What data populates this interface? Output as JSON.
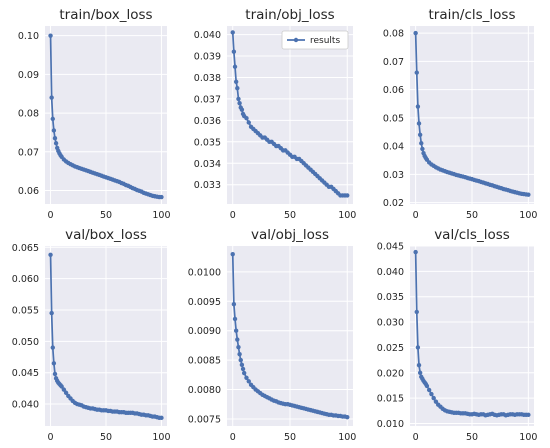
{
  "legend": {
    "label": "results",
    "position": "top-right",
    "panel": 1
  },
  "series_color": "#4c72b0",
  "chart_data": [
    {
      "type": "line",
      "title": "train/box_loss",
      "x": [
        0,
        1,
        2,
        3,
        4,
        5,
        6,
        7,
        8,
        9,
        10,
        12,
        14,
        16,
        18,
        20,
        22,
        24,
        26,
        28,
        30,
        32,
        34,
        36,
        38,
        40,
        42,
        44,
        46,
        48,
        50,
        52,
        54,
        56,
        58,
        60,
        62,
        64,
        66,
        68,
        70,
        72,
        74,
        76,
        78,
        80,
        82,
        84,
        86,
        88,
        90,
        92,
        94,
        96,
        98,
        100
      ],
      "y": [
        0.1,
        0.084,
        0.0785,
        0.0755,
        0.0735,
        0.0722,
        0.071,
        0.0702,
        0.0696,
        0.0691,
        0.0687,
        0.068,
        0.0675,
        0.0671,
        0.0668,
        0.0665,
        0.0662,
        0.066,
        0.0658,
        0.0656,
        0.0654,
        0.0652,
        0.065,
        0.0648,
        0.0646,
        0.0644,
        0.0642,
        0.064,
        0.0638,
        0.0636,
        0.0634,
        0.0632,
        0.063,
        0.0628,
        0.0626,
        0.0624,
        0.0622,
        0.0619,
        0.0617,
        0.0614,
        0.0612,
        0.0609,
        0.0606,
        0.0604,
        0.0601,
        0.0599,
        0.0597,
        0.0594,
        0.0592,
        0.059,
        0.0588,
        0.0586,
        0.0585,
        0.0584,
        0.0583,
        0.0583
      ],
      "xticks": [
        0,
        50,
        100
      ],
      "yticks": [
        0.06,
        0.07,
        0.08,
        0.09,
        0.1
      ],
      "ytick_labels": [
        "0.06",
        "0.07",
        "0.08",
        "0.09",
        "0.10"
      ],
      "xlim": [
        -5,
        105
      ],
      "ylim": [
        0.0565,
        0.1025
      ]
    },
    {
      "type": "line",
      "title": "train/obj_loss",
      "x": [
        0,
        1,
        2,
        3,
        4,
        5,
        6,
        7,
        8,
        9,
        10,
        12,
        14,
        16,
        18,
        20,
        22,
        24,
        26,
        28,
        30,
        32,
        34,
        36,
        38,
        40,
        42,
        44,
        46,
        48,
        50,
        52,
        54,
        56,
        58,
        60,
        62,
        64,
        66,
        68,
        70,
        72,
        74,
        76,
        78,
        80,
        82,
        84,
        86,
        88,
        90,
        92,
        94,
        96,
        98,
        100
      ],
      "y": [
        0.0401,
        0.0392,
        0.0385,
        0.0378,
        0.0375,
        0.037,
        0.0368,
        0.0366,
        0.0365,
        0.0363,
        0.0362,
        0.0361,
        0.0359,
        0.0357,
        0.0356,
        0.0355,
        0.0354,
        0.0353,
        0.0352,
        0.0352,
        0.0351,
        0.035,
        0.035,
        0.0349,
        0.0348,
        0.0348,
        0.0347,
        0.0346,
        0.0346,
        0.0345,
        0.0344,
        0.0343,
        0.0343,
        0.0342,
        0.0342,
        0.0341,
        0.034,
        0.0339,
        0.0338,
        0.0337,
        0.0336,
        0.0335,
        0.0334,
        0.0333,
        0.0332,
        0.0331,
        0.033,
        0.0329,
        0.0329,
        0.0328,
        0.0327,
        0.0326,
        0.0325,
        0.0325,
        0.0325,
        0.0325
      ],
      "xticks": [
        0,
        50,
        100
      ],
      "yticks": [
        0.033,
        0.034,
        0.035,
        0.036,
        0.037,
        0.038,
        0.039,
        0.04
      ],
      "ytick_labels": [
        "0.033",
        "0.034",
        "0.035",
        "0.036",
        "0.037",
        "0.038",
        "0.039",
        "0.040"
      ],
      "xlim": [
        -5,
        105
      ],
      "ylim": [
        0.0321,
        0.0404
      ]
    },
    {
      "type": "line",
      "title": "train/cls_loss",
      "x": [
        0,
        1,
        2,
        3,
        4,
        5,
        6,
        7,
        8,
        9,
        10,
        12,
        14,
        16,
        18,
        20,
        22,
        24,
        26,
        28,
        30,
        32,
        34,
        36,
        38,
        40,
        42,
        44,
        46,
        48,
        50,
        52,
        54,
        56,
        58,
        60,
        62,
        64,
        66,
        68,
        70,
        72,
        74,
        76,
        78,
        80,
        82,
        84,
        86,
        88,
        90,
        92,
        94,
        96,
        98,
        100
      ],
      "y": [
        0.08,
        0.066,
        0.054,
        0.048,
        0.044,
        0.041,
        0.039,
        0.0375,
        0.0365,
        0.0358,
        0.0352,
        0.0342,
        0.0335,
        0.033,
        0.0325,
        0.0321,
        0.0317,
        0.0314,
        0.0311,
        0.0308,
        0.0306,
        0.0303,
        0.0301,
        0.0298,
        0.0296,
        0.0294,
        0.0292,
        0.029,
        0.0287,
        0.0285,
        0.0283,
        0.028,
        0.0278,
        0.0276,
        0.0273,
        0.0271,
        0.0268,
        0.0266,
        0.0263,
        0.0261,
        0.0258,
        0.0256,
        0.0253,
        0.0251,
        0.0248,
        0.0246,
        0.0244,
        0.0241,
        0.0239,
        0.0237,
        0.0235,
        0.0233,
        0.0231,
        0.023,
        0.0229,
        0.0228
      ],
      "xticks": [
        0,
        50,
        100
      ],
      "yticks": [
        0.02,
        0.03,
        0.04,
        0.05,
        0.06,
        0.07,
        0.08
      ],
      "ytick_labels": [
        "0.02",
        "0.03",
        "0.04",
        "0.05",
        "0.06",
        "0.07",
        "0.08"
      ],
      "xlim": [
        -5,
        105
      ],
      "ylim": [
        0.0195,
        0.0825
      ]
    },
    {
      "type": "line",
      "title": "val/box_loss",
      "x": [
        0,
        1,
        2,
        3,
        4,
        5,
        6,
        7,
        8,
        9,
        10,
        12,
        14,
        16,
        18,
        20,
        22,
        24,
        26,
        28,
        30,
        32,
        34,
        36,
        38,
        40,
        42,
        44,
        46,
        48,
        50,
        52,
        54,
        56,
        58,
        60,
        62,
        64,
        66,
        68,
        70,
        72,
        74,
        76,
        78,
        80,
        82,
        84,
        86,
        88,
        90,
        92,
        94,
        96,
        98,
        100
      ],
      "y": [
        0.0638,
        0.0545,
        0.049,
        0.0465,
        0.0448,
        0.0441,
        0.0437,
        0.0434,
        0.0432,
        0.043,
        0.0428,
        0.0423,
        0.0418,
        0.0413,
        0.0409,
        0.0405,
        0.0402,
        0.04,
        0.0399,
        0.0398,
        0.0396,
        0.0395,
        0.0394,
        0.0393,
        0.0393,
        0.0392,
        0.0391,
        0.0391,
        0.039,
        0.039,
        0.039,
        0.0389,
        0.0389,
        0.0388,
        0.0388,
        0.0388,
        0.0387,
        0.0387,
        0.0387,
        0.0386,
        0.0386,
        0.0386,
        0.0386,
        0.0385,
        0.0385,
        0.0384,
        0.0383,
        0.0383,
        0.0382,
        0.0382,
        0.0381,
        0.038,
        0.038,
        0.0379,
        0.0378,
        0.0378
      ],
      "xticks": [
        0,
        50,
        100
      ],
      "yticks": [
        0.04,
        0.045,
        0.05,
        0.055,
        0.06,
        0.065
      ],
      "ytick_labels": [
        "0.040",
        "0.045",
        "0.050",
        "0.055",
        "0.060",
        "0.065"
      ],
      "xlim": [
        -5,
        105
      ],
      "ylim": [
        0.0365,
        0.0652
      ]
    },
    {
      "type": "line",
      "title": "val/obj_loss",
      "x": [
        0,
        1,
        2,
        3,
        4,
        5,
        6,
        7,
        8,
        9,
        10,
        12,
        14,
        16,
        18,
        20,
        22,
        24,
        26,
        28,
        30,
        32,
        34,
        36,
        38,
        40,
        42,
        44,
        46,
        48,
        50,
        52,
        54,
        56,
        58,
        60,
        62,
        64,
        66,
        68,
        70,
        72,
        74,
        76,
        78,
        80,
        82,
        84,
        86,
        88,
        90,
        92,
        94,
        96,
        98,
        100
      ],
      "y": [
        0.0103,
        0.00945,
        0.0092,
        0.009,
        0.00885,
        0.00872,
        0.0086,
        0.0085,
        0.00842,
        0.00835,
        0.00828,
        0.0082,
        0.00814,
        0.00808,
        0.00804,
        0.008,
        0.00797,
        0.00794,
        0.00791,
        0.00789,
        0.00787,
        0.00785,
        0.00783,
        0.00781,
        0.0078,
        0.00778,
        0.00777,
        0.00776,
        0.00775,
        0.00775,
        0.00774,
        0.00773,
        0.00772,
        0.00771,
        0.0077,
        0.00769,
        0.00768,
        0.00767,
        0.00766,
        0.00765,
        0.00764,
        0.00763,
        0.00762,
        0.00761,
        0.0076,
        0.00759,
        0.00758,
        0.00757,
        0.00757,
        0.00756,
        0.00756,
        0.00755,
        0.00755,
        0.00754,
        0.00754,
        0.00753
      ],
      "xticks": [
        0,
        50,
        100
      ],
      "yticks": [
        0.0075,
        0.008,
        0.0085,
        0.009,
        0.0095,
        0.01
      ],
      "ytick_labels": [
        "0.0075",
        "0.0080",
        "0.0085",
        "0.0090",
        "0.0095",
        "0.0100"
      ],
      "xlim": [
        -5,
        105
      ],
      "ylim": [
        0.00738,
        0.01044
      ]
    },
    {
      "type": "line",
      "title": "val/cls_loss",
      "x": [
        0,
        1,
        2,
        3,
        4,
        5,
        6,
        7,
        8,
        9,
        10,
        12,
        14,
        16,
        18,
        20,
        22,
        24,
        26,
        28,
        30,
        32,
        34,
        36,
        38,
        40,
        42,
        44,
        46,
        48,
        50,
        52,
        54,
        56,
        58,
        60,
        62,
        64,
        66,
        68,
        70,
        72,
        74,
        76,
        78,
        80,
        82,
        84,
        86,
        88,
        90,
        92,
        94,
        96,
        98,
        100
      ],
      "y": [
        0.0438,
        0.032,
        0.025,
        0.0215,
        0.02,
        0.0192,
        0.0188,
        0.0184,
        0.0181,
        0.0178,
        0.0174,
        0.0166,
        0.0158,
        0.015,
        0.0143,
        0.0137,
        0.0133,
        0.0129,
        0.0126,
        0.0124,
        0.0123,
        0.0122,
        0.0121,
        0.0121,
        0.0121,
        0.012,
        0.012,
        0.012,
        0.0119,
        0.0118,
        0.0118,
        0.0119,
        0.0118,
        0.0117,
        0.0118,
        0.0118,
        0.0116,
        0.0117,
        0.0118,
        0.0119,
        0.0117,
        0.0116,
        0.0117,
        0.0118,
        0.0118,
        0.0116,
        0.0117,
        0.0118,
        0.0118,
        0.0117,
        0.0118,
        0.0118,
        0.0118,
        0.0117,
        0.0117,
        0.0117
      ],
      "xticks": [
        0,
        50,
        100
      ],
      "yticks": [
        0.01,
        0.015,
        0.02,
        0.025,
        0.03,
        0.035,
        0.04,
        0.045
      ],
      "ytick_labels": [
        "0.010",
        "0.015",
        "0.020",
        "0.025",
        "0.030",
        "0.035",
        "0.040",
        "0.045"
      ],
      "xlim": [
        -5,
        105
      ],
      "ylim": [
        0.0095,
        0.045
      ]
    }
  ]
}
